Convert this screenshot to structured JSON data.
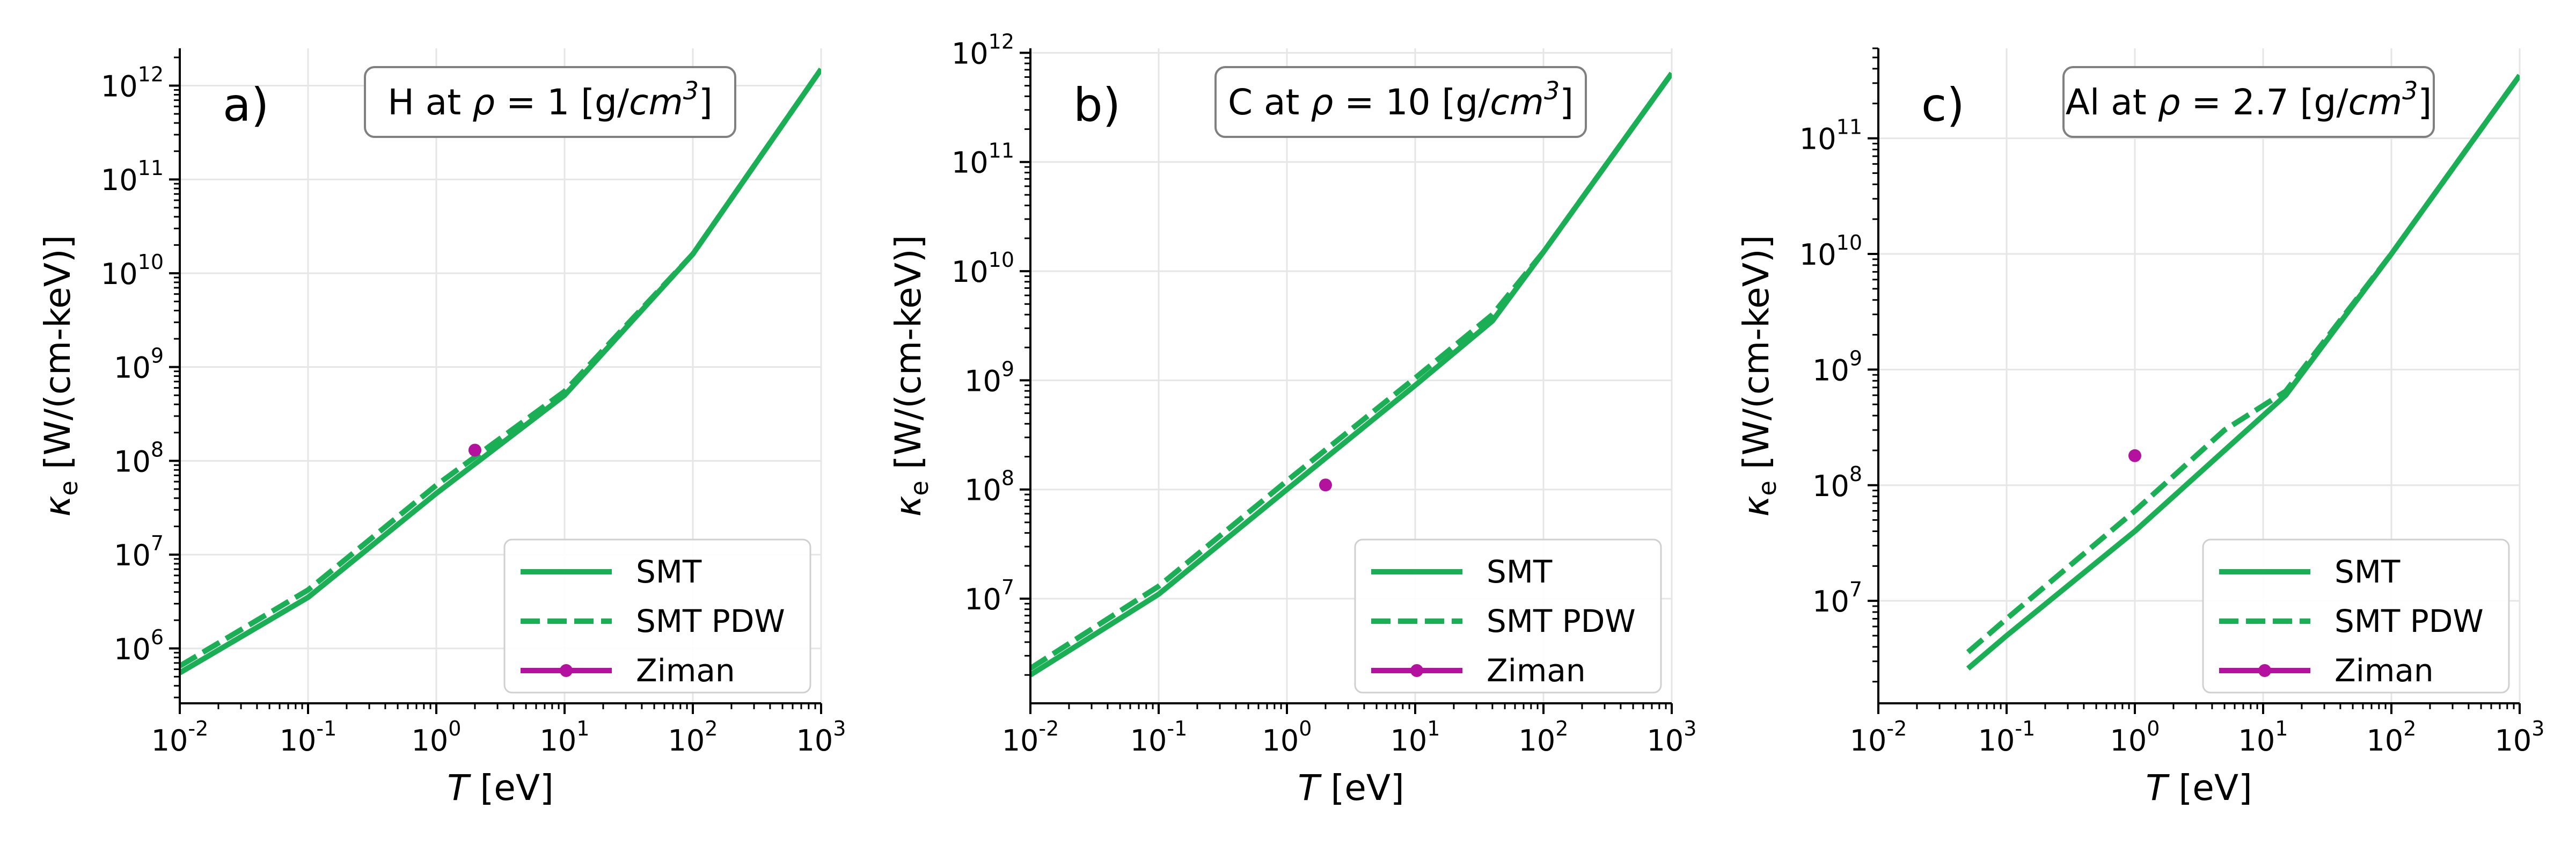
{
  "chart_data": [
    {
      "type": "line",
      "panel_label": "a)",
      "title": "H at ρ = 1 [g/cm³]",
      "title_parts": {
        "prefix": "H at ",
        "rho": "ρ",
        "eq": " =  1 [g/",
        "unit": "cm",
        "exp": "3",
        "suffix": "]"
      },
      "xlabel": {
        "var": "T",
        "unit": " [eV]"
      },
      "ylabel": {
        "var": "κ",
        "sub": "e",
        "unit": " [W/(cm-keV)]"
      },
      "xscale": "log",
      "yscale": "log",
      "xlim": [
        0.01,
        1000
      ],
      "ylim": [
        260000.0,
        2500000000000.0
      ],
      "xticks": [
        {
          "base": "10",
          "exp": "-2",
          "v": 0.01
        },
        {
          "base": "10",
          "exp": "-1",
          "v": 0.1
        },
        {
          "base": "10",
          "exp": "0",
          "v": 1
        },
        {
          "base": "10",
          "exp": "1",
          "v": 10
        },
        {
          "base": "10",
          "exp": "2",
          "v": 100
        },
        {
          "base": "10",
          "exp": "3",
          "v": 1000
        }
      ],
      "yticks": [
        {
          "base": "10",
          "exp": "6",
          "v": 1000000.0
        },
        {
          "base": "10",
          "exp": "7",
          "v": 10000000.0
        },
        {
          "base": "10",
          "exp": "8",
          "v": 100000000.0
        },
        {
          "base": "10",
          "exp": "9",
          "v": 1000000000.0
        },
        {
          "base": "10",
          "exp": "10",
          "v": 10000000000.0
        },
        {
          "base": "10",
          "exp": "11",
          "v": 100000000000.0
        },
        {
          "base": "10",
          "exp": "12",
          "v": 1000000000000.0
        }
      ],
      "grid": true,
      "legend_position": "lower-right",
      "series": [
        {
          "name": "SMT",
          "style": "solid",
          "color": "#1aaf54",
          "x": [
            0.01,
            0.1,
            1,
            10,
            100,
            1000
          ],
          "y": [
            550000.0,
            3500000.0,
            45000000.0,
            500000000.0,
            16000000000.0,
            1500000000000.0
          ]
        },
        {
          "name": "SMT PDW",
          "style": "dashed",
          "color": "#1aaf54",
          "x": [
            0.01,
            0.1,
            1,
            10,
            100,
            1000
          ],
          "y": [
            650000.0,
            4200000.0,
            55000000.0,
            550000000.0,
            16000000000.0,
            1500000000000.0
          ]
        },
        {
          "name": "Ziman",
          "style": "point",
          "color": "#b5119f",
          "x": [
            2
          ],
          "y": [
            130000000.0
          ]
        }
      ]
    },
    {
      "type": "line",
      "panel_label": "b)",
      "title": "C at ρ = 10 [g/cm³]",
      "title_parts": {
        "prefix": "C at ",
        "rho": "ρ",
        "eq": " =  10 [g/",
        "unit": "cm",
        "exp": "3",
        "suffix": "]"
      },
      "xlabel": {
        "var": "T",
        "unit": " [eV]"
      },
      "ylabel": {
        "var": "κ",
        "sub": "e",
        "unit": " [W/(cm-keV)]"
      },
      "xscale": "log",
      "yscale": "log",
      "xlim": [
        0.01,
        1000
      ],
      "ylim": [
        1100000.0,
        1100000000000.0
      ],
      "xticks": [
        {
          "base": "10",
          "exp": "-2",
          "v": 0.01
        },
        {
          "base": "10",
          "exp": "-1",
          "v": 0.1
        },
        {
          "base": "10",
          "exp": "0",
          "v": 1
        },
        {
          "base": "10",
          "exp": "1",
          "v": 10
        },
        {
          "base": "10",
          "exp": "2",
          "v": 100
        },
        {
          "base": "10",
          "exp": "3",
          "v": 1000
        }
      ],
      "yticks": [
        {
          "base": "10",
          "exp": "7",
          "v": 10000000.0
        },
        {
          "base": "10",
          "exp": "8",
          "v": 100000000.0
        },
        {
          "base": "10",
          "exp": "9",
          "v": 1000000000.0
        },
        {
          "base": "10",
          "exp": "10",
          "v": 10000000000.0
        },
        {
          "base": "10",
          "exp": "11",
          "v": 100000000000.0
        },
        {
          "base": "10",
          "exp": "12",
          "v": 1000000000000.0
        }
      ],
      "grid": true,
      "legend_position": "lower-right",
      "series": [
        {
          "name": "SMT",
          "style": "solid",
          "color": "#1aaf54",
          "x": [
            0.01,
            0.1,
            1,
            10,
            40,
            100,
            1000
          ],
          "y": [
            2000000.0,
            11000000.0,
            100000000.0,
            900000000.0,
            3500000000.0,
            15000000000.0,
            650000000000.0
          ]
        },
        {
          "name": "SMT PDW",
          "style": "dashed",
          "color": "#1aaf54",
          "x": [
            0.01,
            0.1,
            1,
            10,
            40,
            100,
            1000
          ],
          "y": [
            2300000.0,
            13000000.0,
            120000000.0,
            1050000000.0,
            4000000000.0,
            15000000000.0,
            650000000000.0
          ]
        },
        {
          "name": "Ziman",
          "style": "point",
          "color": "#b5119f",
          "x": [
            2
          ],
          "y": [
            110000000.0
          ]
        }
      ]
    },
    {
      "type": "line",
      "panel_label": "c)",
      "title": "Al at ρ = 2.7 [g/cm³]",
      "title_parts": {
        "prefix": "Al at ",
        "rho": "ρ",
        "eq": " =  2.7 [g/",
        "unit": "cm",
        "exp": "3",
        "suffix": "]"
      },
      "xlabel": {
        "var": "T",
        "unit": " [eV]"
      },
      "ylabel": {
        "var": "κ",
        "sub": "e",
        "unit": " [W/(cm-keV)]"
      },
      "xscale": "log",
      "yscale": "log",
      "xlim": [
        0.01,
        1000
      ],
      "ylim": [
        1300000.0,
        600000000000.0
      ],
      "xticks": [
        {
          "base": "10",
          "exp": "-2",
          "v": 0.01
        },
        {
          "base": "10",
          "exp": "-1",
          "v": 0.1
        },
        {
          "base": "10",
          "exp": "0",
          "v": 1
        },
        {
          "base": "10",
          "exp": "1",
          "v": 10
        },
        {
          "base": "10",
          "exp": "2",
          "v": 100
        },
        {
          "base": "10",
          "exp": "3",
          "v": 1000
        }
      ],
      "yticks": [
        {
          "base": "10",
          "exp": "7",
          "v": 10000000.0
        },
        {
          "base": "10",
          "exp": "8",
          "v": 100000000.0
        },
        {
          "base": "10",
          "exp": "9",
          "v": 1000000000.0
        },
        {
          "base": "10",
          "exp": "10",
          "v": 10000000000.0
        },
        {
          "base": "10",
          "exp": "11",
          "v": 100000000000.0
        }
      ],
      "grid": true,
      "legend_position": "lower-right",
      "series": [
        {
          "name": "SMT",
          "style": "solid",
          "color": "#1aaf54",
          "x": [
            0.05,
            0.1,
            1,
            5,
            15,
            100,
            1000
          ],
          "y": [
            2600000.0,
            5000000.0,
            40000000.0,
            200000000.0,
            600000000.0,
            10000000000.0,
            350000000000.0
          ]
        },
        {
          "name": "SMT PDW",
          "style": "dashed",
          "color": "#1aaf54",
          "x": [
            0.05,
            0.1,
            1,
            5,
            15,
            100,
            1000
          ],
          "y": [
            3600000.0,
            7000000.0,
            60000000.0,
            300000000.0,
            650000000.0,
            10000000000.0,
            350000000000.0
          ]
        },
        {
          "name": "Ziman",
          "style": "point",
          "color": "#b5119f",
          "x": [
            1
          ],
          "y": [
            180000000.0
          ]
        }
      ]
    }
  ]
}
